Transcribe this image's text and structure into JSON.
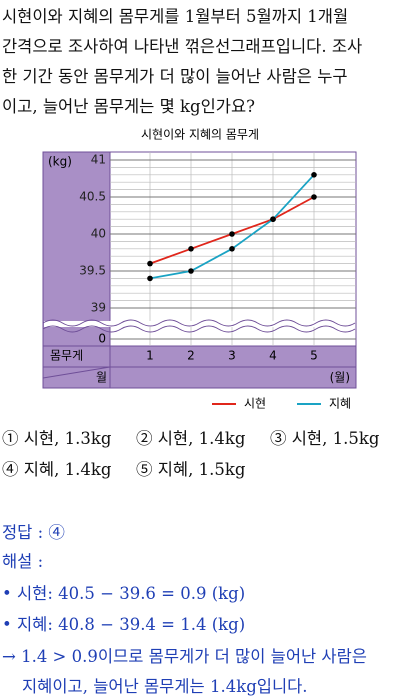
{
  "question": {
    "lines": [
      "시현이와 지혜의 몸무게를 1월부터 5월까지 1개월",
      "간격으로 조사하여 나타낸 꺾은선그래프입니다. 조사",
      "한 기간 동안 몸무게가 더 많이 늘어난 사람은 누구",
      "이고, 늘어난 몸무게는 몇 kg인가요?"
    ]
  },
  "chart_data": {
    "type": "line",
    "title": "시현이와 지혜의 몸무게",
    "y_unit": "(kg)",
    "x_unit": "(월)",
    "row_header": "몸무게",
    "col_header": "월",
    "axis_origin": 0,
    "categories": [
      "1",
      "2",
      "3",
      "4",
      "5"
    ],
    "series": [
      {
        "name": "시현",
        "color": "#e0261b",
        "values": [
          39.6,
          39.8,
          40.0,
          40.2,
          40.5
        ]
      },
      {
        "name": "지혜",
        "color": "#1aa3c4",
        "values": [
          39.4,
          39.5,
          39.8,
          40.2,
          40.8
        ]
      }
    ],
    "ylim": [
      39,
      41
    ],
    "yticks": [
      39,
      39.5,
      40,
      40.5,
      41
    ],
    "grid": true
  },
  "choices": [
    "① 시현, 1.3kg",
    "② 시현, 1.4kg",
    "③ 시현, 1.5kg",
    "④ 지혜, 1.4kg",
    "⑤ 지혜, 1.5kg"
  ],
  "answer": {
    "label": "정답 : ④",
    "explanation_title": "해설 :",
    "lines": [
      "• 시현: 40.5 − 39.6 = 0.9 (kg)",
      "• 지혜: 40.8 − 39.4 = 1.4 (kg)",
      "→ 1.4 > 0.9이므로 몸무게가 더 많이 늘어난 사람은",
      "지혜이고, 늘어난 몸무게는 1.4kg입니다."
    ]
  }
}
